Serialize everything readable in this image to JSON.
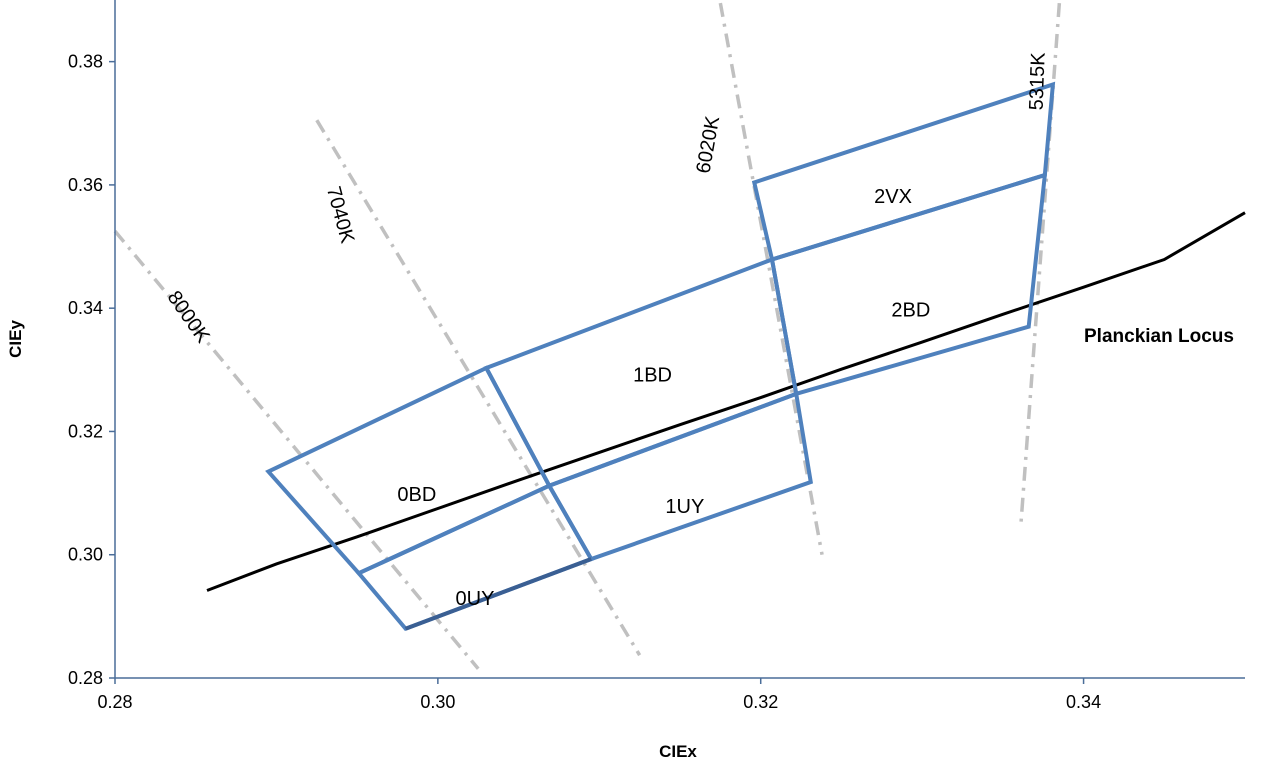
{
  "chart_data": {
    "type": "line",
    "xlabel": "CIEx",
    "ylabel": "CIEy",
    "xlim": [
      0.28,
      0.35
    ],
    "ylim": [
      0.28,
      0.39
    ],
    "x_ticks": [
      {
        "value": 0.28,
        "label": "0.28"
      },
      {
        "value": 0.3,
        "label": "0.30"
      },
      {
        "value": 0.32,
        "label": "0.32"
      },
      {
        "value": 0.34,
        "label": "0.34"
      }
    ],
    "y_ticks": [
      {
        "value": 0.28,
        "label": "0.28"
      },
      {
        "value": 0.3,
        "label": "0.30"
      },
      {
        "value": 0.32,
        "label": "0.32"
      },
      {
        "value": 0.34,
        "label": "0.34"
      },
      {
        "value": 0.36,
        "label": "0.36"
      },
      {
        "value": 0.38,
        "label": "0.38"
      }
    ],
    "grid": false,
    "colors": {
      "bins": "#4f81bd",
      "bins_dark": "#3a5f93",
      "locus": "#000000",
      "cct_lines": "#c0c0c0",
      "axis": "#4a6d99"
    },
    "planckian_locus": {
      "label": "Planckian Locus",
      "x": [
        0.2857,
        0.29,
        0.295,
        0.3,
        0.305,
        0.31,
        0.315,
        0.32,
        0.325,
        0.33,
        0.335,
        0.34,
        0.345,
        0.35
      ],
      "y": [
        0.2942,
        0.2985,
        0.3029,
        0.3075,
        0.3121,
        0.3166,
        0.3211,
        0.3255,
        0.3301,
        0.3345,
        0.339,
        0.3434,
        0.3479,
        0.3555
      ]
    },
    "cct_lines": [
      {
        "label": "8000K",
        "x": [
          0.28,
          0.3025
        ],
        "y": [
          0.3525,
          0.2815
        ],
        "label_x": 0.2845,
        "label_y": 0.3385,
        "label_rotation": 55
      },
      {
        "label": "7040K",
        "x": [
          0.2925,
          0.3125
        ],
        "y": [
          0.3705,
          0.2837
        ],
        "label_x": 0.2939,
        "label_y": 0.3551,
        "label_rotation": 75
      },
      {
        "label": "6020K",
        "x": [
          0.3175,
          0.3238
        ],
        "y": [
          0.3895,
          0.3
        ],
        "label_x": 0.3168,
        "label_y": 0.3665,
        "label_rotation": -80
      },
      {
        "label": "5315K",
        "x": [
          0.3385,
          0.3361
        ],
        "y": [
          0.3895,
          0.3043
        ],
        "label_x": 0.3372,
        "label_y": 0.3768,
        "label_rotation": -88
      }
    ],
    "bins": [
      {
        "name": "0UY",
        "x": [
          0.2951,
          0.298,
          0.3095,
          0.3069
        ],
        "y": [
          0.297,
          0.288,
          0.2993,
          0.3112
        ],
        "label_x": 0.3023,
        "label_y": 0.2927
      },
      {
        "name": "0BD",
        "x": [
          0.2895,
          0.2951,
          0.3069,
          0.303
        ],
        "y": [
          0.3135,
          0.297,
          0.3112,
          0.3303
        ],
        "label_x": 0.2987,
        "label_y": 0.3096
      },
      {
        "name": "1UY",
        "x": [
          0.3069,
          0.3095,
          0.3231,
          0.3222
        ],
        "y": [
          0.3112,
          0.2993,
          0.3118,
          0.3261
        ],
        "label_x": 0.3153,
        "label_y": 0.3076
      },
      {
        "name": "1BD",
        "x": [
          0.303,
          0.3069,
          0.3222,
          0.3207
        ],
        "y": [
          0.3303,
          0.3112,
          0.3261,
          0.3479
        ],
        "label_x": 0.3133,
        "label_y": 0.329
      },
      {
        "name": "2BD",
        "x": [
          0.3207,
          0.3222,
          0.3366,
          0.3376
        ],
        "y": [
          0.3479,
          0.3261,
          0.337,
          0.3616
        ],
        "label_x": 0.3293,
        "label_y": 0.3395
      },
      {
        "name": "2VX",
        "x": [
          0.3196,
          0.3207,
          0.3376,
          0.3381
        ],
        "y": [
          0.3604,
          0.3479,
          0.3616,
          0.3763
        ],
        "label_x": 0.3282,
        "label_y": 0.3579
      }
    ]
  }
}
